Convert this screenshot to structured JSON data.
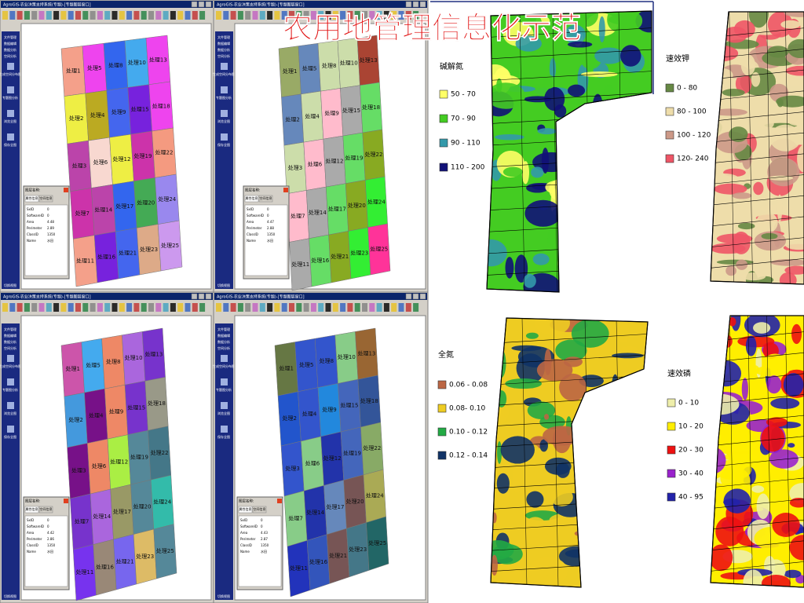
{
  "title": "农用地管理信息化示范",
  "windows": [
    {
      "title_bar": "AgroGIS-农业决策支持系统(专题)-[专题图层窗口]",
      "menu": [
        "文件管理",
        "数据编辑",
        "数据分析",
        "空间分析",
        "生成空间分布图",
        "专题图分析",
        "浏览全图",
        "保存全图"
      ],
      "panel_title": "图层名称:",
      "panel_tabs": [
        "属性信息",
        "空间信息"
      ],
      "panel_rows": [
        [
          "SxID",
          "0"
        ],
        [
          "SoftwareID",
          "0"
        ],
        [
          "Area",
          "4.48"
        ],
        [
          "Perimeter",
          "2.89"
        ],
        [
          "ClassID",
          "1350"
        ],
        [
          "Name",
          "水田"
        ]
      ],
      "status": "切换视图",
      "cells": [
        "处理1",
        "处理5",
        "处理8",
        "处理10",
        "处理13",
        "处理2",
        "处理4",
        "处理9",
        "处理15",
        "处理18",
        "处理3",
        "处理6",
        "处理12",
        "处理19",
        "处理22",
        "处理7",
        "处理14",
        "处理17",
        "处理20",
        "处理24",
        "处理11",
        "处理16",
        "处理21",
        "处理23",
        "处理25"
      ],
      "colors": [
        "#f4a08a",
        "#ee44ee",
        "#3366ee",
        "#44aaee",
        "#ee44ee",
        "#eeee44",
        "#bbaa22",
        "#4466ee",
        "#7722dd",
        "#ee44ee",
        "#bb44aa",
        "#f8d8d0",
        "#eeee44",
        "#cc33aa",
        "#f49a80",
        "#cc33aa",
        "#bb44aa",
        "#3366ee",
        "#44aa55",
        "#9988ee",
        "#f4a08a",
        "#7722dd",
        "#4466ee",
        "#ddaa88",
        "#cc99ee"
      ]
    },
    {
      "title_bar": "AgroGIS-农业决策支持系统(专题)-[专题图层窗口]",
      "menu": [
        "文件管理",
        "数据编辑",
        "数据分析",
        "空间分析",
        "生成空间分布图",
        "专题图分析",
        "浏览全图",
        "保存全图"
      ],
      "panel_title": "图层名称:",
      "panel_tabs": [
        "属性信息",
        "空间信息"
      ],
      "panel_rows": [
        [
          "SxID",
          "0"
        ],
        [
          "SoftwareID",
          "0"
        ],
        [
          "Area",
          "4.47"
        ],
        [
          "Perimeter",
          "2.88"
        ],
        [
          "ClassID",
          "1350"
        ],
        [
          "Name",
          "水田"
        ]
      ],
      "status": "切换视图",
      "cells": [
        "处理1",
        "处理5",
        "处理8",
        "处理10",
        "处理13",
        "处理2",
        "处理4",
        "处理9",
        "处理15",
        "处理18",
        "处理3",
        "处理6",
        "处理12",
        "处理19",
        "处理22",
        "处理7",
        "处理14",
        "处理17",
        "处理20",
        "处理24",
        "处理11",
        "处理16",
        "处理21",
        "处理23",
        "处理25"
      ],
      "colors": [
        "#99aa66",
        "#6688bb",
        "#ccddaa",
        "#ccddaa",
        "#aa4433",
        "#6688bb",
        "#ccddaa",
        "#ffbbcc",
        "#aaaaaa",
        "#66dd66",
        "#ccddaa",
        "#ffbbcc",
        "#aaaaaa",
        "#66dd66",
        "#88aa22",
        "#ffbbcc",
        "#aaaaaa",
        "#66dd66",
        "#88aa22",
        "#33ee33",
        "#aaaaaa",
        "#66dd66",
        "#88aa22",
        "#33ee33",
        "#ff3399"
      ]
    },
    {
      "title_bar": "AgroGIS-农业决策支持系统(专题)-[专题图层窗口]",
      "menu": [
        "文件管理",
        "数据编辑",
        "数据分析",
        "空间分析",
        "生成空间分布图",
        "专题图分析",
        "浏览全图",
        "保存全图"
      ],
      "panel_title": "图层名称:",
      "panel_tabs": [
        "属性信息",
        "空间信息"
      ],
      "panel_rows": [
        [
          "SxID",
          "0"
        ],
        [
          "SoftwareID",
          "0"
        ],
        [
          "Area",
          "4.42"
        ],
        [
          "Perimeter",
          "2.86"
        ],
        [
          "ClassID",
          "1350"
        ],
        [
          "Name",
          "水田"
        ]
      ],
      "status": "切换视图",
      "cells": [
        "处理1",
        "处理5",
        "处理8",
        "处理10",
        "处理13",
        "处理2",
        "处理4",
        "处理9",
        "处理15",
        "处理18",
        "处理3",
        "处理6",
        "处理12",
        "处理19",
        "处理22",
        "处理7",
        "处理14",
        "处理17",
        "处理20",
        "处理24",
        "处理11",
        "处理16",
        "处理21",
        "处理23",
        "处理25"
      ],
      "colors": [
        "#cc55aa",
        "#44aaee",
        "#ee8866",
        "#aa66dd",
        "#7733cc",
        "#4499dd",
        "#771188",
        "#ee8866",
        "#7733cc",
        "#999988",
        "#771188",
        "#ee8866",
        "#aaee44",
        "#558899",
        "#447788",
        "#7733cc",
        "#aa66dd",
        "#999966",
        "#558899",
        "#33bbaa",
        "#7733ee",
        "#998877",
        "#7766ee",
        "#ddbb66",
        "#558899"
      ]
    },
    {
      "title_bar": "AgroGIS-农业决策支持系统(专题)-[专题图层窗口]",
      "menu": [
        "文件管理",
        "数据编辑",
        "数据分析",
        "空间分析",
        "生成空间分布图",
        "专题图分析",
        "浏览全图",
        "保存全图"
      ],
      "panel_title": "图层名称:",
      "panel_tabs": [
        "属性信息",
        "空间信息"
      ],
      "panel_rows": [
        [
          "SxID",
          "0"
        ],
        [
          "SoftwareID",
          "0"
        ],
        [
          "Area",
          "4.43"
        ],
        [
          "Perimeter",
          "2.87"
        ],
        [
          "ClassID",
          "1350"
        ],
        [
          "Name",
          "水田"
        ]
      ],
      "status": "切换视图",
      "cells": [
        "处理1",
        "处理5",
        "处理8",
        "处理10",
        "处理13",
        "处理2",
        "处理4",
        "处理9",
        "处理15",
        "处理18",
        "处理3",
        "处理6",
        "处理12",
        "处理19",
        "处理22",
        "处理7",
        "处理14",
        "处理17",
        "处理20",
        "处理24",
        "处理11",
        "处理16",
        "处理21",
        "处理23",
        "处理25"
      ],
      "colors": [
        "#667744",
        "#3355cc",
        "#3355cc",
        "#88cc88",
        "#996633",
        "#2255cc",
        "#3355cc",
        "#2288dd",
        "#4466bb",
        "#335599",
        "#3355cc",
        "#88cc88",
        "#2233aa",
        "#4466bb",
        "#88aa66",
        "#88cc88",
        "#2233aa",
        "#6688bb",
        "#775555",
        "#aaaa55",
        "#2233bb",
        "#3355bb",
        "#775555",
        "#447788",
        "#226666"
      ]
    }
  ],
  "maps": [
    {
      "legend_title": "碱解氮",
      "legend": [
        {
          "label": "50 - 70",
          "color": "#ffff66"
        },
        {
          "label": "70 - 90",
          "color": "#44cc22"
        },
        {
          "label": "90 - 110",
          "color": "#3399aa"
        },
        {
          "label": "110 - 200",
          "color": "#111177"
        }
      ]
    },
    {
      "legend_title": "速效钾",
      "legend": [
        {
          "label": "0 - 80",
          "color": "#668844"
        },
        {
          "label": "80 - 100",
          "color": "#eeddaa"
        },
        {
          "label": "100 - 120",
          "color": "#cc9988"
        },
        {
          "label": "120- 240",
          "color": "#ee5566"
        }
      ]
    },
    {
      "legend_title": "全氮",
      "legend": [
        {
          "label": "0.06 - 0.08",
          "color": "#bb6644"
        },
        {
          "label": "0.08- 0.10",
          "color": "#eecc22"
        },
        {
          "label": "0.10 - 0.12",
          "color": "#22aa44"
        },
        {
          "label": "0.12 - 0.14",
          "color": "#113366"
        }
      ]
    },
    {
      "legend_title": "速效磷",
      "legend": [
        {
          "label": "0 - 10",
          "color": "#eeeeaa"
        },
        {
          "label": "10 - 20",
          "color": "#ffee00"
        },
        {
          "label": "20 - 30",
          "color": "#ee1111"
        },
        {
          "label": "30 - 40",
          "color": "#9922cc"
        },
        {
          "label": "40 - 95",
          "color": "#2222aa"
        }
      ]
    }
  ]
}
